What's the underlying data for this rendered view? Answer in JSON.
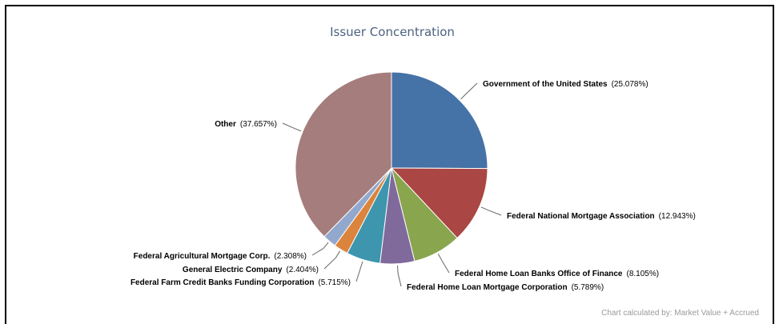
{
  "chart_data": {
    "type": "pie",
    "title": "Issuer Concentration",
    "footer": "Chart calculated by: Market Value + Accrued",
    "slices": [
      {
        "label": "Government of the United States",
        "value": 25.078,
        "pct_text": "(25.078%)",
        "color": "#4572a7"
      },
      {
        "label": "Federal National Mortgage Association",
        "value": 12.943,
        "pct_text": "(12.943%)",
        "color": "#aa4643"
      },
      {
        "label": "Federal Home Loan Banks Office of Finance",
        "value": 8.105,
        "pct_text": "(8.105%)",
        "color": "#89a54e"
      },
      {
        "label": "Federal Home Loan Mortgage Corporation",
        "value": 5.789,
        "pct_text": "(5.789%)",
        "color": "#80699b"
      },
      {
        "label": "Federal Farm Credit Banks Funding Corporation",
        "value": 5.715,
        "pct_text": "(5.715%)",
        "color": "#3d96ae"
      },
      {
        "label": "General Electric Company",
        "value": 2.404,
        "pct_text": "(2.404%)",
        "color": "#db843d"
      },
      {
        "label": "Federal Agricultural Mortgage Corp.",
        "value": 2.308,
        "pct_text": "(2.308%)",
        "color": "#92a8cd"
      },
      {
        "label": "Other",
        "value": 37.657,
        "pct_text": "(37.657%)",
        "color": "#a47d7c"
      }
    ]
  }
}
